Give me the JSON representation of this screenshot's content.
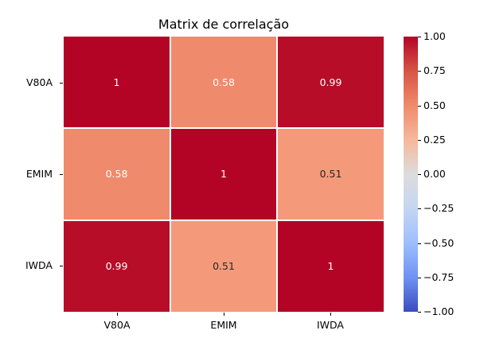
{
  "chart_data": {
    "type": "heatmap",
    "title": "Matrix de correlação",
    "xlabel": "",
    "ylabel": "",
    "x_categories": [
      "V80A",
      "EMIM",
      "IWDA"
    ],
    "y_categories": [
      "V80A",
      "EMIM",
      "IWDA"
    ],
    "values": [
      [
        1,
        0.58,
        0.99
      ],
      [
        0.58,
        1,
        0.51
      ],
      [
        0.99,
        0.51,
        1
      ]
    ],
    "annotations": [
      [
        "1",
        "0.58",
        "0.99"
      ],
      [
        "0.58",
        "1",
        "0.51"
      ],
      [
        "0.99",
        "0.51",
        "1"
      ]
    ],
    "colormap": "coolwarm",
    "vmin": -1.0,
    "vmax": 1.0,
    "colorbar_ticks": [
      "1.00",
      "0.75",
      "0.50",
      "0.25",
      "0.00",
      "−0.25",
      "−0.50",
      "−0.75",
      "−1.00"
    ],
    "cell_colors": [
      [
        "#b40426",
        "#f08a6c",
        "#b70d28"
      ],
      [
        "#f08a6c",
        "#b40426",
        "#f49a7b"
      ],
      [
        "#b70d28",
        "#f49a7b",
        "#b40426"
      ]
    ],
    "text_colors": [
      [
        "#ffffff",
        "#ffffff",
        "#ffffff"
      ],
      [
        "#ffffff",
        "#ffffff",
        "#262626"
      ],
      [
        "#ffffff",
        "#262626",
        "#ffffff"
      ]
    ],
    "linecolor": "#ffffff"
  }
}
